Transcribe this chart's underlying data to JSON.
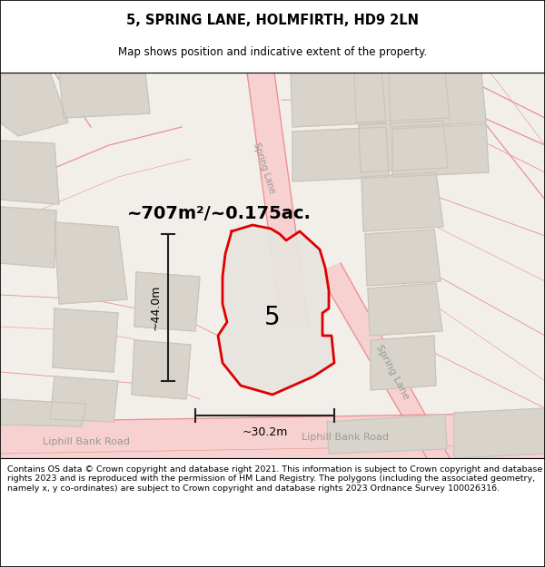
{
  "title": "5, SPRING LANE, HOLMFIRTH, HD9 2LN",
  "subtitle": "Map shows position and indicative extent of the property.",
  "area_label": "~707m²/~0.175ac.",
  "plot_number": "5",
  "dim_width": "~30.2m",
  "dim_height": "~44.0m",
  "footer_text": "Contains OS data © Crown copyright and database right 2021. This information is subject to Crown copyright and database rights 2023 and is reproduced with the permission of HM Land Registry. The polygons (including the associated geometry, namely x, y co-ordinates) are subject to Crown copyright and database rights 2023 Ordnance Survey 100026316.",
  "map_bg": "#f2efeb",
  "plot_fill": "#e8e5e0",
  "plot_outline_color": "#dd0000",
  "road_fill": "#f7d0d0",
  "road_line": "#e89090",
  "building_fill": "#d8d4cc",
  "building_line": "#c8c4bc",
  "text_road": "#999999",
  "footer_bg": "#ffffff",
  "title_bg": "#ffffff",
  "dim_line_color": "#222222"
}
